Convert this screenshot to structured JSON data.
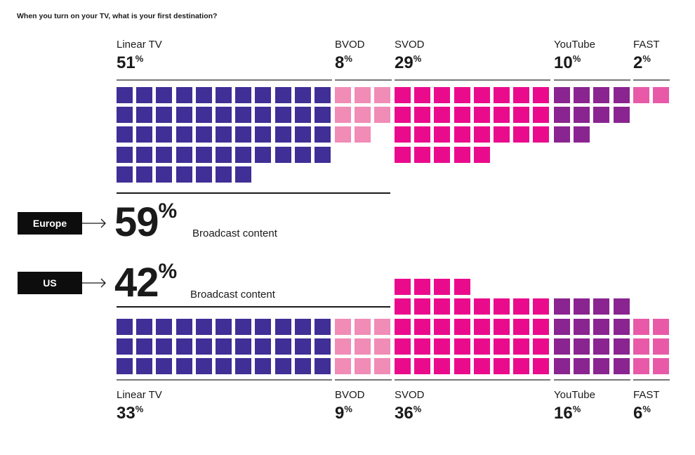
{
  "question": "When you turn on your TV, what is your first destination?",
  "colors": {
    "Linear TV": "#3f2f96",
    "BVOD": "#f08cb6",
    "SVOD": "#ea0b8c",
    "YouTube": "#8a2490",
    "FAST": "#e85aa8"
  },
  "europe": {
    "region": "Europe",
    "big_value": "59",
    "big_suffix": "%",
    "caption": "Broadcast content"
  },
  "us": {
    "region": "US",
    "big_value": "42",
    "big_suffix": "%",
    "caption": "Broadcast content"
  },
  "chart_data": [
    {
      "type": "waffle",
      "title": "Europe",
      "categories": [
        "Linear TV",
        "BVOD",
        "SVOD",
        "YouTube",
        "FAST"
      ],
      "values": [
        51,
        8,
        29,
        10,
        2
      ],
      "value_labels": [
        "51",
        "8",
        "29",
        "10",
        "2"
      ],
      "unit": "%",
      "broadcast_share": 59
    },
    {
      "type": "waffle",
      "title": "US",
      "categories": [
        "Linear TV",
        "BVOD",
        "SVOD",
        "YouTube",
        "FAST"
      ],
      "values": [
        33,
        9,
        36,
        16,
        6
      ],
      "value_labels": [
        "33",
        "9",
        "36",
        "16",
        "6"
      ],
      "unit": "%",
      "broadcast_share": 42
    }
  ]
}
